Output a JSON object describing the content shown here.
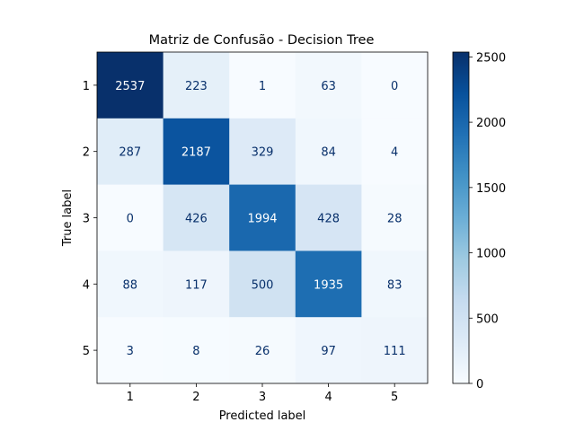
{
  "chart_data": {
    "type": "heatmap",
    "title": "Matriz de Confusão - Decision Tree",
    "xlabel": "Predicted label",
    "ylabel": "True label",
    "x_categories": [
      "1",
      "2",
      "3",
      "4",
      "5"
    ],
    "y_categories": [
      "1",
      "2",
      "3",
      "4",
      "5"
    ],
    "values": [
      [
        2537,
        223,
        1,
        63,
        0
      ],
      [
        287,
        2187,
        329,
        84,
        4
      ],
      [
        0,
        426,
        1994,
        428,
        28
      ],
      [
        88,
        117,
        500,
        1935,
        83
      ],
      [
        3,
        8,
        26,
        97,
        111
      ]
    ],
    "colormap": "Blues",
    "colorbar": {
      "range": [
        0,
        2537
      ],
      "ticks": [
        0,
        500,
        1000,
        1500,
        2000,
        2500
      ]
    }
  }
}
